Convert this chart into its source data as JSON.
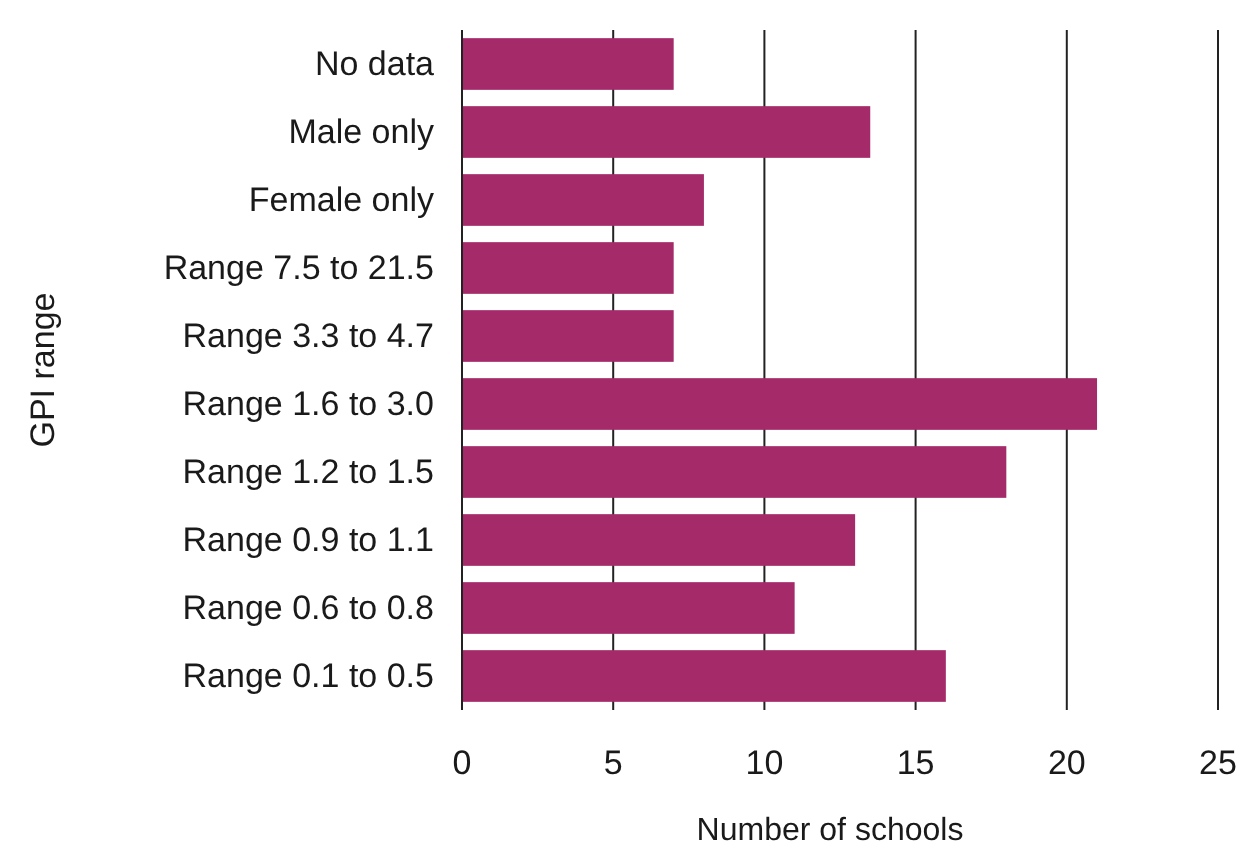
{
  "chart_data": {
    "type": "bar",
    "orientation": "horizontal",
    "xlabel": "Number of schools",
    "ylabel": "GPI range",
    "categories": [
      "No data",
      "Male only",
      "Female only",
      "Range 7.5 to 21.5",
      "Range 3.3 to 4.7",
      "Range 1.6 to 3.0",
      "Range 1.2 to 1.5",
      "Range 0.9 to 1.1",
      "Range 0.6 to 0.8",
      "Range 0.1 to 0.5"
    ],
    "values": [
      7,
      13.5,
      8,
      7,
      7,
      21,
      18,
      13,
      11,
      16
    ],
    "color": "#a52a69",
    "xlim": [
      0,
      25
    ],
    "xticks": [
      0,
      5,
      10,
      15,
      20,
      25
    ],
    "grid": "x"
  }
}
